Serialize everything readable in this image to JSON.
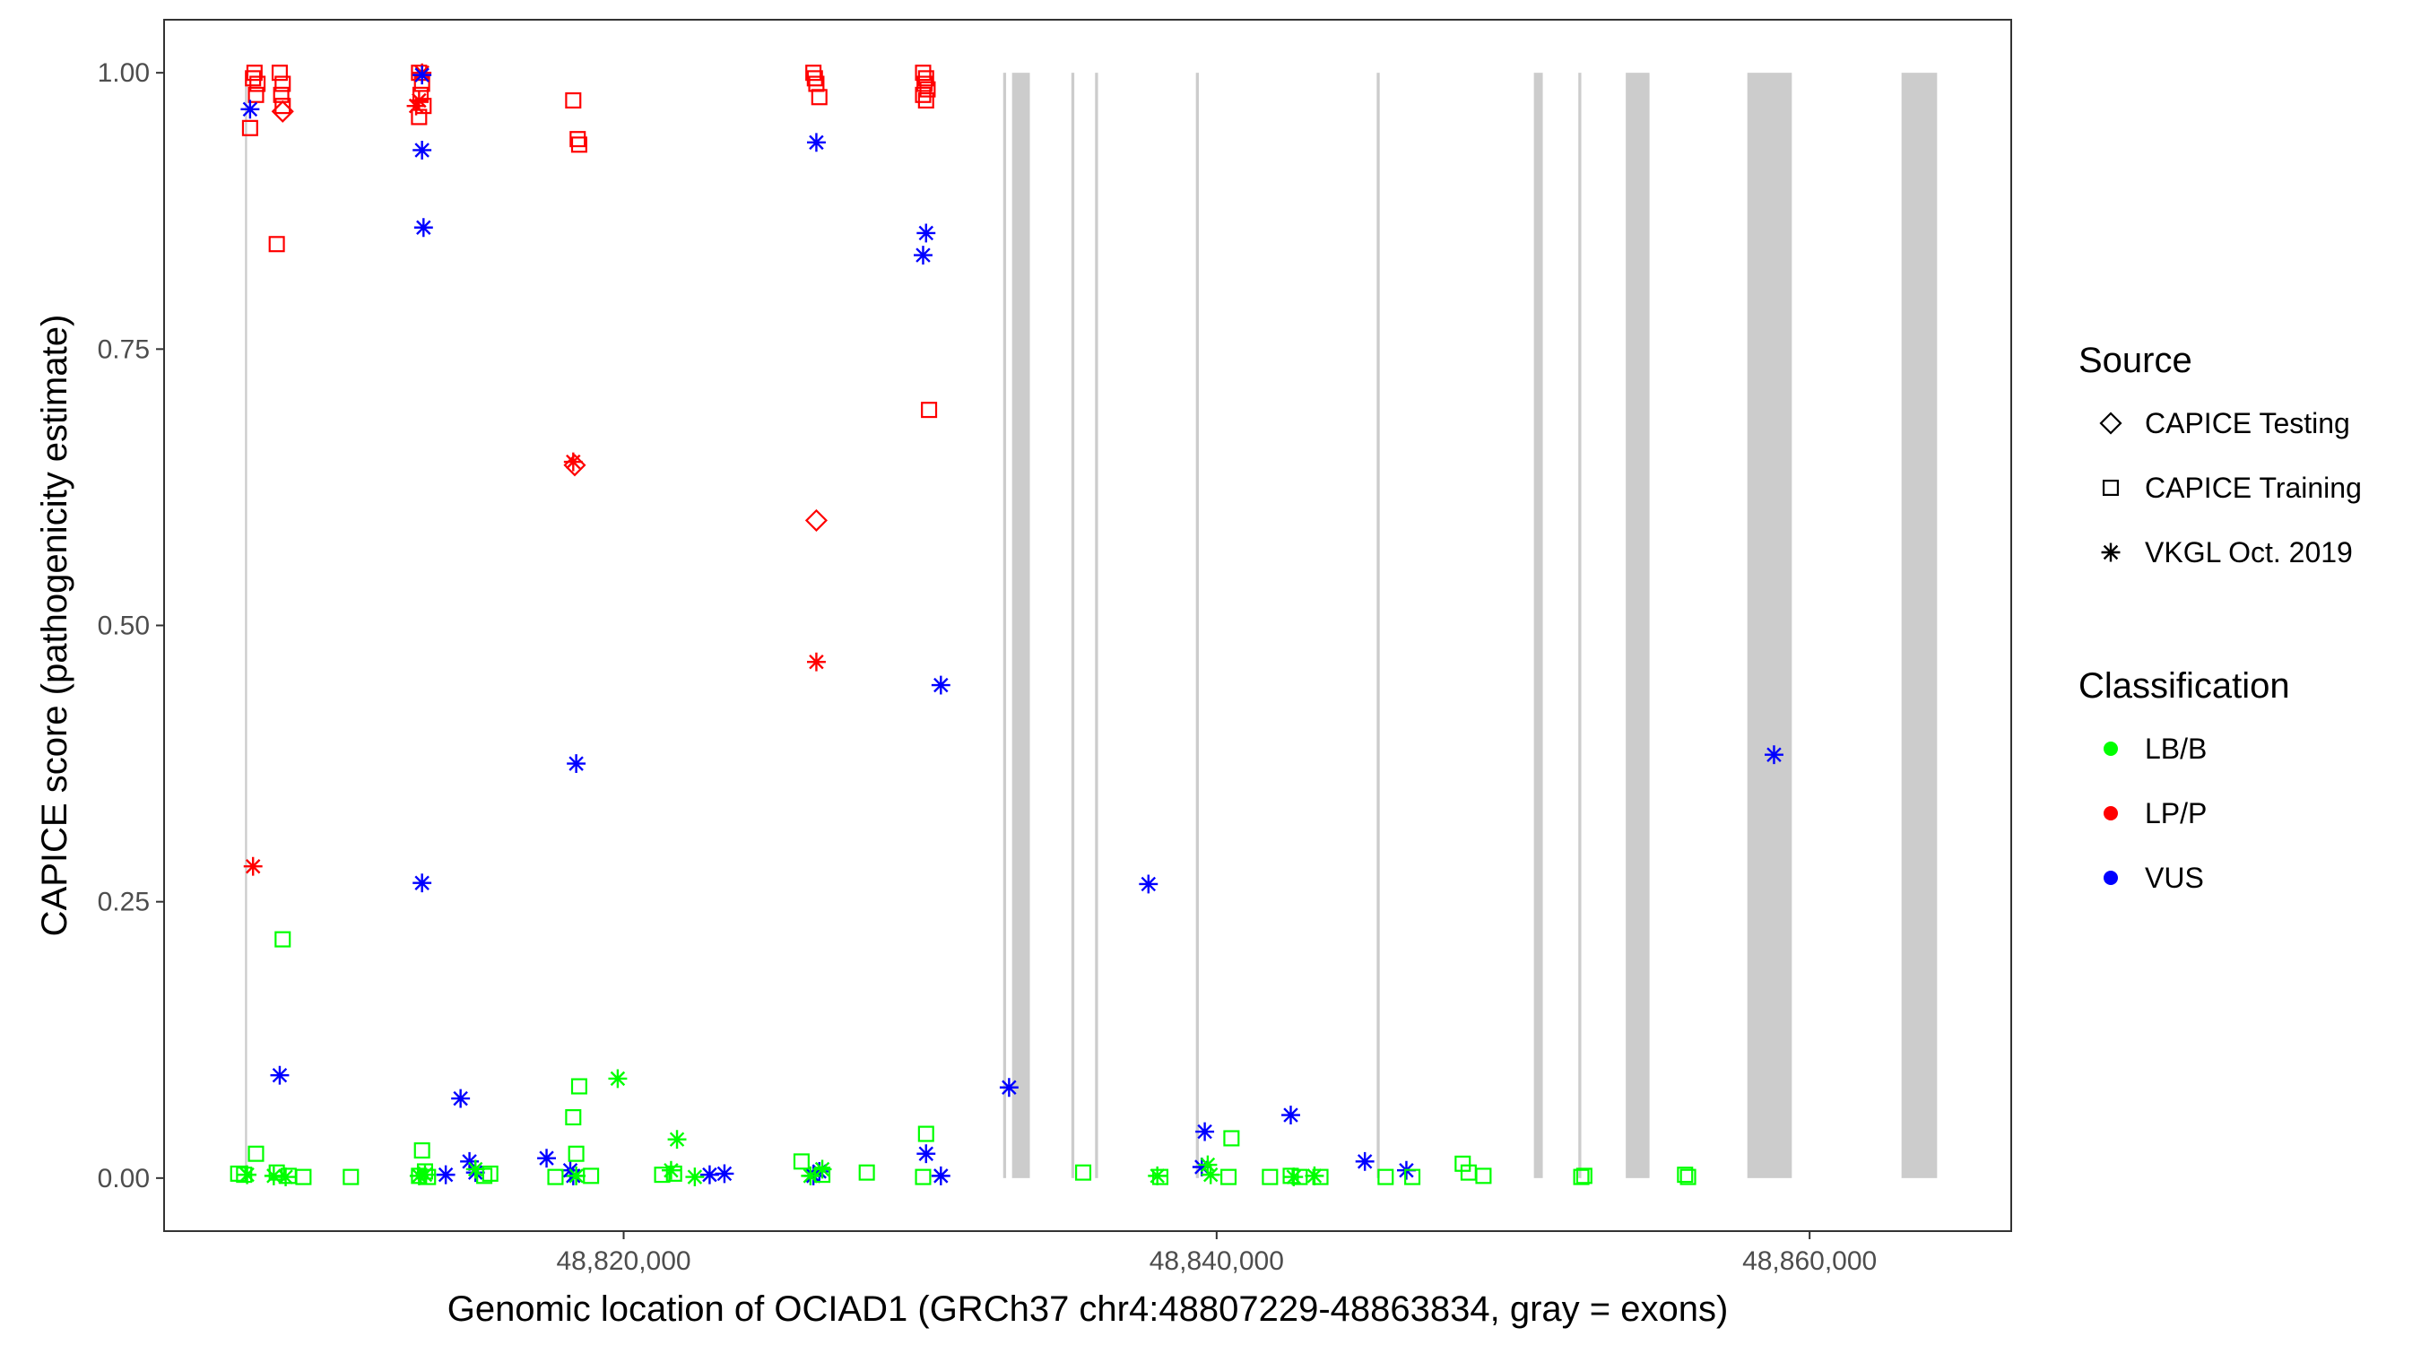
{
  "chart_data": {
    "type": "scatter",
    "xlabel": "Genomic location of OCIAD1 (GRCh37 chr4:48807229-48863834, gray = exons)",
    "ylabel": "CAPICE score (pathogenicity estimate)",
    "xlim": [
      48804500,
      48866800
    ],
    "ylim": [
      -0.048,
      1.048
    ],
    "x_ticks": [
      48820000,
      48840000,
      48860000
    ],
    "x_tick_labels": [
      "48,820,000",
      "48,840,000",
      "48,860,000"
    ],
    "y_ticks": [
      0,
      0.25,
      0.5,
      0.75,
      1.0
    ],
    "y_tick_labels": [
      "0.00",
      "0.25",
      "0.50",
      "0.75",
      "1.00"
    ],
    "grid": false,
    "legend_position": "right",
    "legend": {
      "source_title": "Source",
      "source_items": [
        {
          "label": "CAPICE Testing",
          "shape": "diamond"
        },
        {
          "label": "CAPICE Training",
          "shape": "square"
        },
        {
          "label": "VKGL Oct. 2019",
          "shape": "asterisk"
        }
      ],
      "class_title": "Classification",
      "class_items": [
        {
          "label": "LB/B",
          "color": "#00ff00"
        },
        {
          "label": "LP/P",
          "color": "#ff0000"
        },
        {
          "label": "VUS",
          "color": "#0000ff"
        }
      ]
    },
    "colors": {
      "LB/B": "#00ff00",
      "LP/P": "#ff0000",
      "VUS": "#0000ff",
      "exon": "#cccccc"
    },
    "exons": [
      [
        48807229,
        48807300
      ],
      [
        48832800,
        48832900
      ],
      [
        48833100,
        48833700
      ],
      [
        48835100,
        48835200
      ],
      [
        48835900,
        48836000
      ],
      [
        48839300,
        48839400
      ],
      [
        48845400,
        48845500
      ],
      [
        48850700,
        48851000
      ],
      [
        48852200,
        48852300
      ],
      [
        48853800,
        48854600
      ],
      [
        48857900,
        48859400
      ],
      [
        48863100,
        48864300
      ]
    ],
    "series": [
      {
        "source": "CAPICE Training",
        "class": "LP/P",
        "points": [
          [
            48807500,
            0.995
          ],
          [
            48807600,
            0.98
          ],
          [
            48807400,
            0.95
          ],
          [
            48807550,
            1.0
          ],
          [
            48807650,
            0.99
          ],
          [
            48808400,
            1.0
          ],
          [
            48808500,
            0.99
          ],
          [
            48808450,
            0.98
          ],
          [
            48808500,
            0.97
          ],
          [
            48808300,
            0.845
          ],
          [
            48813100,
            1.0
          ],
          [
            48813200,
            0.99
          ],
          [
            48813150,
            0.98
          ],
          [
            48813250,
            0.97
          ],
          [
            48813100,
            0.96
          ],
          [
            48818300,
            0.975
          ],
          [
            48818450,
            0.94
          ],
          [
            48818500,
            0.935
          ],
          [
            48826400,
            1.0
          ],
          [
            48826500,
            0.99
          ],
          [
            48826450,
            0.995
          ],
          [
            48826600,
            0.978
          ],
          [
            48830100,
            1.0
          ],
          [
            48830200,
            0.995
          ],
          [
            48830150,
            0.99
          ],
          [
            48830250,
            0.985
          ],
          [
            48830100,
            0.98
          ],
          [
            48830200,
            0.975
          ],
          [
            48830300,
            0.695
          ]
        ]
      },
      {
        "source": "CAPICE Testing",
        "class": "LP/P",
        "points": [
          [
            48808500,
            0.965
          ],
          [
            48818350,
            0.645
          ],
          [
            48826500,
            0.595
          ]
        ]
      },
      {
        "source": "VKGL Oct. 2019",
        "class": "LP/P",
        "points": [
          [
            48807500,
            0.282
          ],
          [
            48813000,
            0.97
          ],
          [
            48813100,
            0.975
          ],
          [
            48813200,
            1.0
          ],
          [
            48818300,
            0.648
          ],
          [
            48826500,
            0.467
          ]
        ]
      },
      {
        "source": "VKGL Oct. 2019",
        "class": "VUS",
        "points": [
          [
            48807400,
            0.967
          ],
          [
            48808400,
            0.093
          ],
          [
            48813200,
            0.998
          ],
          [
            48813200,
            0.93
          ],
          [
            48813250,
            0.86
          ],
          [
            48813200,
            0.267
          ],
          [
            48814000,
            0.003
          ],
          [
            48814500,
            0.072
          ],
          [
            48814800,
            0.015
          ],
          [
            48815000,
            0.005
          ],
          [
            48817400,
            0.018
          ],
          [
            48818200,
            0.007
          ],
          [
            48818300,
            0.002
          ],
          [
            48818400,
            0.375
          ],
          [
            48822900,
            0.003
          ],
          [
            48823400,
            0.004
          ],
          [
            48826500,
            0.937
          ],
          [
            48826400,
            0.002
          ],
          [
            48826600,
            0.006
          ],
          [
            48830200,
            0.855
          ],
          [
            48830100,
            0.835
          ],
          [
            48830200,
            0.022
          ],
          [
            48830700,
            0.446
          ],
          [
            48830700,
            0.002
          ],
          [
            48833000,
            0.082
          ],
          [
            48837700,
            0.266
          ],
          [
            48839600,
            0.042
          ],
          [
            48839500,
            0.01
          ],
          [
            48842500,
            0.057
          ],
          [
            48845000,
            0.015
          ],
          [
            48846400,
            0.007
          ],
          [
            48858800,
            0.383
          ]
        ]
      },
      {
        "source": "VKGL Oct. 2019",
        "class": "LB/B",
        "points": [
          [
            48807300,
            0.003
          ],
          [
            48808200,
            0.002
          ],
          [
            48808600,
            0.001
          ],
          [
            48813100,
            0.002
          ],
          [
            48813300,
            0.003
          ],
          [
            48815000,
            0.008
          ],
          [
            48818400,
            0.002
          ],
          [
            48819800,
            0.09
          ],
          [
            48821800,
            0.035
          ],
          [
            48821600,
            0.007
          ],
          [
            48822400,
            0.001
          ],
          [
            48826700,
            0.008
          ],
          [
            48826300,
            0.002
          ],
          [
            48838000,
            0.002
          ],
          [
            48839700,
            0.012
          ],
          [
            48839800,
            0.003
          ],
          [
            48842600,
            0.001
          ],
          [
            48843300,
            0.002
          ]
        ]
      },
      {
        "source": "CAPICE Training",
        "class": "LB/B",
        "points": [
          [
            48807000,
            0.004
          ],
          [
            48807600,
            0.022
          ],
          [
            48807200,
            0.003
          ],
          [
            48808500,
            0.216
          ],
          [
            48808300,
            0.005
          ],
          [
            48808700,
            0.002
          ],
          [
            48809200,
            0.001
          ],
          [
            48810800,
            0.001
          ],
          [
            48813200,
            0.025
          ],
          [
            48813300,
            0.006
          ],
          [
            48813100,
            0.002
          ],
          [
            48813400,
            0.001
          ],
          [
            48815300,
            0.002
          ],
          [
            48815500,
            0.004
          ],
          [
            48817700,
            0.001
          ],
          [
            48818300,
            0.055
          ],
          [
            48818500,
            0.083
          ],
          [
            48818400,
            0.022
          ],
          [
            48818900,
            0.002
          ],
          [
            48821300,
            0.003
          ],
          [
            48821700,
            0.004
          ],
          [
            48826000,
            0.015
          ],
          [
            48826700,
            0.003
          ],
          [
            48828200,
            0.005
          ],
          [
            48830200,
            0.04
          ],
          [
            48830100,
            0.001
          ],
          [
            48835500,
            0.005
          ],
          [
            48838100,
            0.001
          ],
          [
            48840500,
            0.036
          ],
          [
            48840400,
            0.001
          ],
          [
            48841800,
            0.001
          ],
          [
            48842500,
            0.002
          ],
          [
            48842800,
            0.001
          ],
          [
            48843500,
            0.001
          ],
          [
            48845700,
            0.001
          ],
          [
            48846600,
            0.001
          ],
          [
            48848300,
            0.013
          ],
          [
            48848500,
            0.005
          ],
          [
            48849000,
            0.002
          ],
          [
            48852300,
            0.001
          ],
          [
            48852400,
            0.002
          ],
          [
            48855800,
            0.003
          ],
          [
            48855900,
            0.001
          ]
        ]
      }
    ]
  }
}
